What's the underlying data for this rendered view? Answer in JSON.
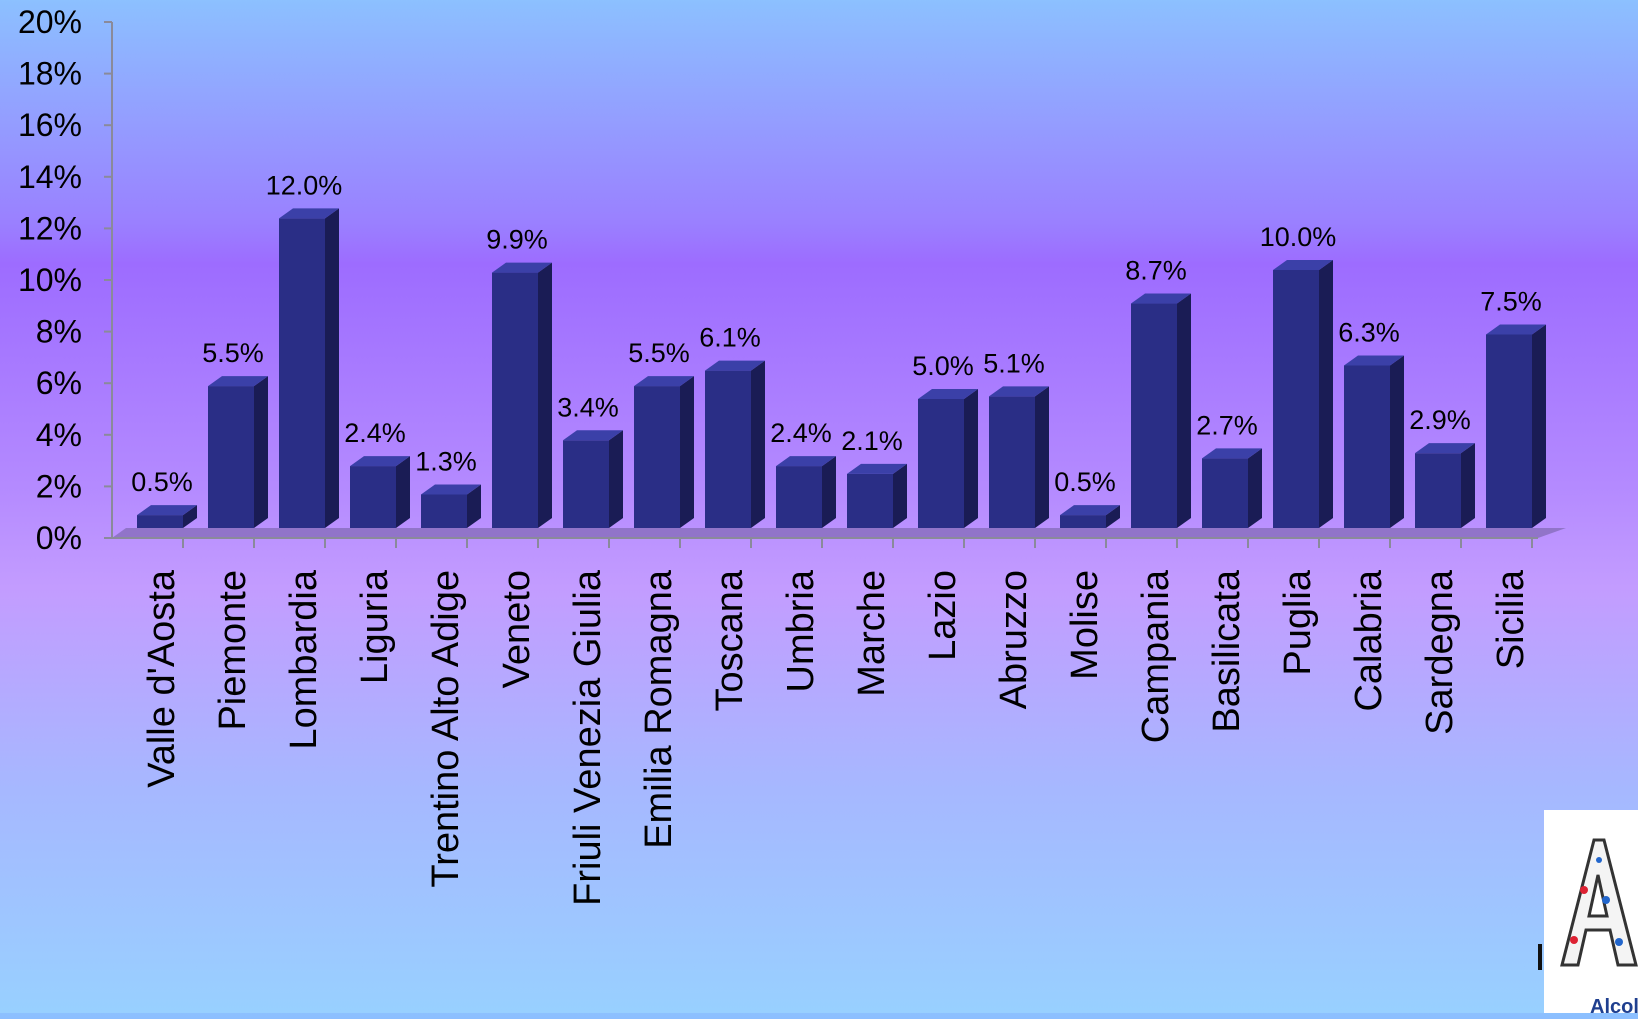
{
  "chart_data": {
    "type": "bar",
    "categories": [
      "Valle d'Aosta",
      "Piemonte",
      "Lombardia",
      "Liguria",
      "Trentino Alto Adige",
      "Veneto",
      "Friuli Venezia Giulia",
      "Emilia Romagna",
      "Toscana",
      "Umbria",
      "Marche",
      "Lazio",
      "Abruzzo",
      "Molise",
      "Campania",
      "Basilicata",
      "Puglia",
      "Calabria",
      "Sardegna",
      "Sicilia"
    ],
    "values": [
      0.5,
      5.5,
      12.0,
      2.4,
      1.3,
      9.9,
      3.4,
      5.5,
      6.1,
      2.4,
      2.1,
      5.0,
      5.1,
      0.5,
      8.7,
      2.7,
      10.0,
      6.3,
      2.9,
      7.5
    ],
    "value_labels": [
      "0.5%",
      "5.5%",
      "12.0%",
      "2.4%",
      "1.3%",
      "9.9%",
      "3.4%",
      "5.5%",
      "6.1%",
      "2.4%",
      "2.1%",
      "5.0%",
      "5.1%",
      "0.5%",
      "8.7%",
      "2.7%",
      "10.0%",
      "6.3%",
      "2.9%",
      "7.5%"
    ],
    "y_ticks": [
      "0%",
      "2%",
      "4%",
      "6%",
      "8%",
      "10%",
      "12%",
      "14%",
      "16%",
      "18%",
      "20%"
    ],
    "ylim": [
      0,
      20
    ],
    "style": "3d-column",
    "grid": false,
    "legend": "none",
    "colors": {
      "bar_front": "#2a2e86",
      "bar_side": "#1a1c55",
      "bar_top": "#3b40a8",
      "floor": "#8a6fc0",
      "axis": "#8a8a9a"
    }
  },
  "logo": {
    "text": "Alcol",
    "icon": "letter-a-logo-icon"
  }
}
